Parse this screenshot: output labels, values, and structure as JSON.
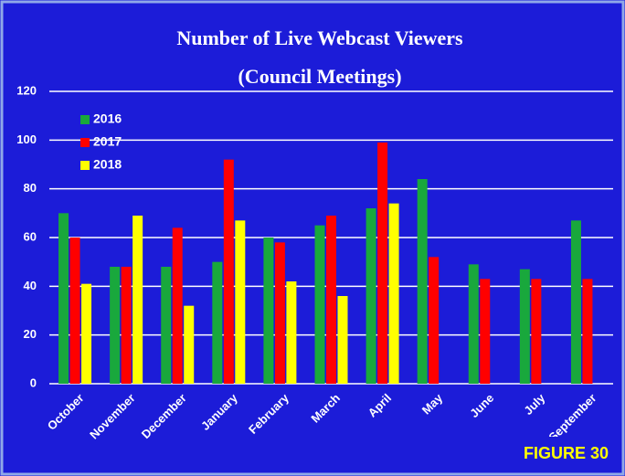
{
  "chart_data": {
    "type": "bar",
    "title": "Number of Live Webcast Viewers",
    "subtitle": "(Council Meetings)",
    "annotation": "FIGURE 30",
    "categories": [
      "October",
      "November",
      "December",
      "January",
      "February",
      "March",
      "April",
      "May",
      "June",
      "July",
      "September"
    ],
    "series": [
      {
        "name": "2016",
        "color": "#19a83c",
        "values": [
          70,
          48,
          48,
          50,
          60,
          65,
          72,
          84,
          49,
          47,
          67
        ]
      },
      {
        "name": "2017",
        "color": "#ff0000",
        "values": [
          60,
          48,
          64,
          92,
          58,
          69,
          99,
          52,
          43,
          43,
          43
        ]
      },
      {
        "name": "2018",
        "color": "#ffff00",
        "values": [
          41,
          69,
          32,
          67,
          42,
          36,
          74,
          null,
          null,
          null,
          null
        ]
      }
    ],
    "ylim": [
      0,
      120
    ],
    "yticks": [
      0,
      20,
      40,
      60,
      80,
      100,
      120
    ],
    "grid": true,
    "legend": "top-left"
  }
}
